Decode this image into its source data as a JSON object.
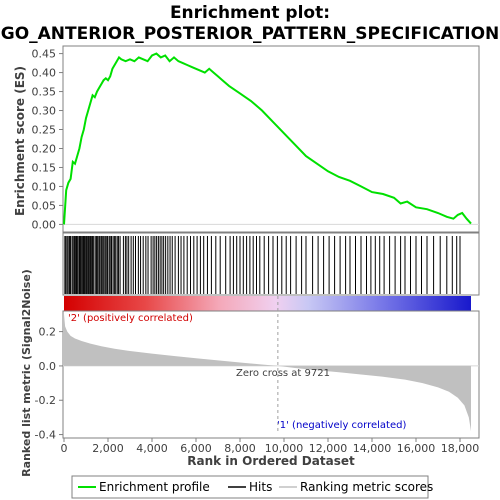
{
  "chart_data": {
    "type": "line",
    "title_line1": "Enrichment plot:",
    "title_line2": "GO_ANTERIOR_POSTERIOR_PATTERN_SPECIFICATION",
    "es_panel": {
      "ylabel": "Enrichment score (ES)",
      "ylim": [
        -0.02,
        0.47
      ],
      "yticks": [
        "0.00",
        "0.05",
        "0.10",
        "0.15",
        "0.20",
        "0.25",
        "0.30",
        "0.35",
        "0.40",
        "0.45"
      ],
      "ytick_values": [
        0,
        0.05,
        0.1,
        0.15,
        0.2,
        0.25,
        0.3,
        0.35,
        0.4,
        0.45
      ],
      "color": "#00e000",
      "series": {
        "name": "Enrichment profile",
        "x": [
          0,
          100,
          200,
          300,
          400,
          500,
          600,
          700,
          800,
          900,
          1000,
          1100,
          1200,
          1300,
          1400,
          1500,
          1600,
          1700,
          1800,
          1900,
          2000,
          2100,
          2200,
          2300,
          2400,
          2500,
          2600,
          2800,
          3000,
          3200,
          3400,
          3600,
          3800,
          4000,
          4200,
          4400,
          4600,
          4800,
          5000,
          5200,
          5400,
          5600,
          5800,
          6000,
          6200,
          6400,
          6600,
          6800,
          7000,
          7200,
          7500,
          8000,
          8500,
          9000,
          9500,
          10000,
          10500,
          11000,
          11500,
          12000,
          12500,
          13000,
          13500,
          14000,
          14500,
          15000,
          15300,
          15600,
          16000,
          16500,
          17000,
          17400,
          17700,
          17900,
          18100,
          18300,
          18500
        ],
        "y": [
          0.0,
          0.09,
          0.11,
          0.12,
          0.165,
          0.16,
          0.18,
          0.2,
          0.23,
          0.25,
          0.28,
          0.3,
          0.32,
          0.34,
          0.335,
          0.35,
          0.36,
          0.37,
          0.38,
          0.385,
          0.38,
          0.39,
          0.41,
          0.42,
          0.43,
          0.44,
          0.435,
          0.43,
          0.435,
          0.43,
          0.44,
          0.435,
          0.43,
          0.445,
          0.45,
          0.44,
          0.445,
          0.43,
          0.44,
          0.43,
          0.425,
          0.42,
          0.415,
          0.41,
          0.405,
          0.4,
          0.41,
          0.4,
          0.39,
          0.38,
          0.365,
          0.345,
          0.325,
          0.3,
          0.27,
          0.24,
          0.21,
          0.18,
          0.16,
          0.14,
          0.125,
          0.115,
          0.1,
          0.085,
          0.08,
          0.07,
          0.055,
          0.06,
          0.045,
          0.04,
          0.03,
          0.02,
          0.015,
          0.025,
          0.03,
          0.015,
          0.002
        ]
      }
    },
    "hits": {
      "name": "Hits",
      "ranks": [
        40,
        90,
        150,
        220,
        260,
        300,
        370,
        420,
        480,
        530,
        570,
        620,
        680,
        720,
        760,
        810,
        860,
        900,
        940,
        990,
        1030,
        1080,
        1120,
        1170,
        1210,
        1260,
        1300,
        1350,
        1420,
        1480,
        1530,
        1590,
        1640,
        1700,
        1760,
        1810,
        1870,
        1920,
        1980,
        2050,
        2100,
        2160,
        2230,
        2290,
        2350,
        2420,
        2480,
        2550,
        2700,
        2790,
        2860,
        2940,
        3050,
        3150,
        3250,
        3380,
        3480,
        3600,
        3720,
        3820,
        3960,
        4050,
        4130,
        4210,
        4290,
        4370,
        4450,
        4530,
        4620,
        4720,
        4820,
        4920,
        5050,
        5200,
        5320,
        5450,
        5600,
        5750,
        5900,
        6050,
        6200,
        6350,
        6520,
        6700,
        6900,
        7100,
        7350,
        7550,
        7700,
        7850,
        8000,
        8150,
        8300,
        8450,
        8600,
        8750,
        8900,
        9100,
        9300,
        9500,
        9700,
        9900,
        10100,
        10300,
        10550,
        10800,
        11000,
        11300,
        11550,
        11800,
        12050,
        12300,
        12550,
        12800,
        13000,
        13250,
        13500,
        13750,
        13950,
        14150,
        14350,
        14550,
        14800,
        15050,
        15300,
        15500,
        15750,
        16000,
        16250,
        16500,
        16800,
        17100,
        17400,
        17650,
        17850,
        18000
      ]
    },
    "rank_panel": {
      "ylabel": "Ranked list metric (Signal2Noise)",
      "xlabel": "Rank in Ordered Dataset",
      "ylim": [
        -0.42,
        0.32
      ],
      "yticks": [
        "-0.4",
        "-0.2",
        "0.0",
        "0.2"
      ],
      "ytick_values": [
        -0.4,
        -0.2,
        0.0,
        0.2
      ],
      "xticks": [
        "0",
        "2,000",
        "4,000",
        "6,000",
        "8,000",
        "10,000",
        "12,000",
        "14,000",
        "16,000",
        "18,000"
      ],
      "xtick_values": [
        0,
        2000,
        4000,
        6000,
        8000,
        10000,
        12000,
        14000,
        16000,
        18000
      ],
      "xlim": [
        0,
        18500
      ],
      "series": {
        "name": "Ranking metric scores",
        "x": [
          0,
          50,
          150,
          300,
          500,
          800,
          1200,
          1700,
          2300,
          3000,
          4000,
          5000,
          6000,
          7000,
          8000,
          9000,
          9721,
          10500,
          11500,
          12500,
          13500,
          14500,
          15500,
          16300,
          17000,
          17500,
          17900,
          18200,
          18400,
          18500
        ],
        "y": [
          0.3,
          0.23,
          0.2,
          0.175,
          0.16,
          0.145,
          0.13,
          0.115,
          0.1,
          0.087,
          0.072,
          0.058,
          0.045,
          0.032,
          0.02,
          0.008,
          0.0,
          -0.012,
          -0.025,
          -0.037,
          -0.05,
          -0.063,
          -0.08,
          -0.1,
          -0.125,
          -0.15,
          -0.185,
          -0.23,
          -0.3,
          -0.38
        ]
      },
      "zero_cross_label": "Zero cross at 9721",
      "zero_cross": 9721,
      "pos_label": "'2' (positively correlated)",
      "neg_label": "'1' (negatively correlated)"
    },
    "legend": {
      "items": [
        {
          "label": "Enrichment profile",
          "color": "#00e000"
        },
        {
          "label": "Hits",
          "color": "#000000"
        },
        {
          "label": "Ranking metric scores",
          "color": "#c0c0c0"
        }
      ]
    }
  }
}
